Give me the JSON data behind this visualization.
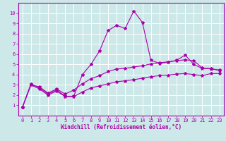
{
  "xlabel": "Windchill (Refroidissement éolien,°C)",
  "background_color": "#cde8e8",
  "grid_color": "#ffffff",
  "line_color": "#aa00aa",
  "x_upper": [
    0,
    1,
    2,
    3,
    4,
    5,
    6,
    7,
    8,
    9,
    10,
    11,
    12,
    13,
    14,
    15,
    16,
    17,
    18,
    19,
    20,
    21,
    22,
    23
  ],
  "y_upper": [
    0.8,
    3.1,
    2.7,
    2.1,
    2.5,
    1.9,
    1.9,
    4.0,
    5.0,
    6.3,
    8.3,
    8.8,
    8.5,
    10.2,
    9.1,
    5.4,
    5.1,
    5.2,
    5.4,
    5.9,
    5.0,
    4.6,
    4.6,
    4.4
  ],
  "x_mid": [
    0,
    1,
    2,
    3,
    4,
    5,
    6,
    7,
    8,
    9,
    10,
    11,
    12,
    13,
    14,
    15,
    16,
    17,
    18,
    19,
    20,
    21,
    22,
    23
  ],
  "y_mid": [
    0.8,
    3.0,
    2.8,
    2.2,
    2.6,
    2.1,
    2.5,
    3.1,
    3.6,
    3.9,
    4.3,
    4.55,
    4.6,
    4.75,
    4.85,
    5.05,
    5.15,
    5.25,
    5.35,
    5.45,
    5.35,
    4.65,
    4.55,
    4.45
  ],
  "x_lower": [
    0,
    1,
    2,
    3,
    4,
    5,
    6,
    7,
    8,
    9,
    10,
    11,
    12,
    13,
    14,
    15,
    16,
    17,
    18,
    19,
    20,
    21,
    22,
    23
  ],
  "y_lower": [
    0.8,
    3.0,
    2.6,
    2.0,
    2.4,
    1.85,
    1.85,
    2.3,
    2.7,
    2.9,
    3.1,
    3.3,
    3.4,
    3.5,
    3.65,
    3.8,
    3.9,
    3.95,
    4.05,
    4.1,
    4.0,
    3.9,
    4.1,
    4.1
  ],
  "ylim": [
    0,
    11
  ],
  "xlim": [
    -0.5,
    23.5
  ],
  "yticks": [
    1,
    2,
    3,
    4,
    5,
    6,
    7,
    8,
    9,
    10
  ],
  "xticks": [
    0,
    1,
    2,
    3,
    4,
    5,
    6,
    7,
    8,
    9,
    10,
    11,
    12,
    13,
    14,
    15,
    16,
    17,
    18,
    19,
    20,
    21,
    22,
    23
  ],
  "marker": "*",
  "markersize": 3,
  "linewidth": 0.8,
  "fontsize_label": 5.5,
  "fontsize_tick": 5
}
